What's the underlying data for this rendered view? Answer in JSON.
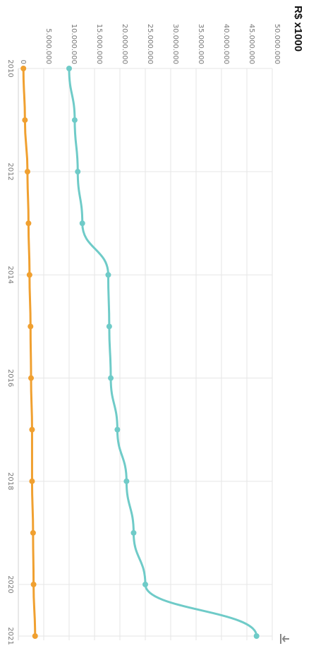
{
  "chart_data": {
    "type": "line",
    "title": "",
    "unit_label": "R$ x1000",
    "xlabel": "",
    "ylabel": "",
    "x": [
      2010,
      2011,
      2012,
      2013,
      2014,
      2015,
      2016,
      2017,
      2018,
      2019,
      2020,
      2021
    ],
    "x_tick_labels": [
      "2010",
      "2012",
      "2014",
      "2016",
      "2018",
      "2020",
      "2021"
    ],
    "y_tick_labels": [
      "0",
      "5.000.000",
      "10.000.000",
      "15.000.000",
      "20.000.000",
      "25.000.000",
      "30.000.000",
      "35.000.000",
      "40.000.000",
      "45.000.000",
      "50.000.000"
    ],
    "ylim": [
      0,
      50000000
    ],
    "grid": true,
    "orientation": "rotated 90 degrees clockwise",
    "series": [
      {
        "color": "#6fcbc8",
        "values": [
          10000000,
          11100000,
          11700000,
          12600000,
          17700000,
          17900000,
          18200000,
          19500000,
          21300000,
          22700000,
          25000000,
          46900000
        ]
      },
      {
        "color": "#f0a030",
        "values": [
          1000000,
          1300000,
          1800000,
          2000000,
          2200000,
          2400000,
          2500000,
          2700000,
          2700000,
          2900000,
          3000000,
          3300000
        ]
      }
    ]
  },
  "download_icon": "download-icon"
}
